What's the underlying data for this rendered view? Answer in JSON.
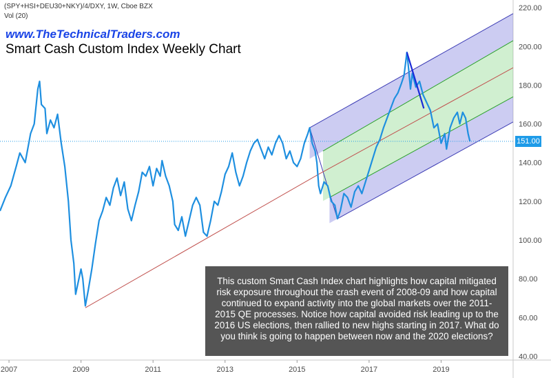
{
  "header": {
    "symbol_line": "(SPY+HSI+DEU30+NKY)/4/DXY, 1W, Cboe BZX",
    "vol_line": "Vol (20)",
    "site_url": "www.TheTechnicalTraders.com",
    "title": "Smart Cash Custom Index Weekly Chart"
  },
  "annotation": "This custom Smart Cash Index chart highlights how capital mitigated risk exposure throughout the crash event of 2008-09 and how capital continued to expand activity into the global markets over the 2011-2015 QE processes.  Notice how capital avoided risk leading up to the 2016 US elections, then rallied to new highs starting in 2017.  What do you think is going to happen between now and the 2020 elections?",
  "current_price": "151.00",
  "colors": {
    "price_line": "#1e8fe0",
    "trend_line": "#c0504d",
    "channel_outer": "#3c3cb4",
    "channel_inner": "#2aa02a",
    "median": "#c0504d",
    "badge": "#1e9be8"
  },
  "chart_data": {
    "type": "line",
    "title": "Smart Cash Custom Index Weekly Chart",
    "xlabel": "",
    "ylabel": "",
    "x_ticks": [
      "2007",
      "2009",
      "2011",
      "2013",
      "2015",
      "2017",
      "2019"
    ],
    "y_ticks": [
      40.0,
      60.0,
      80.0,
      100.0,
      120.0,
      140.0,
      160.0,
      180.0,
      200.0,
      220.0
    ],
    "xlim": [
      2006.75,
      2021.0
    ],
    "ylim": [
      38,
      224
    ],
    "series": [
      {
        "name": "(SPY+HSI+DEU30+NKY)/4/DXY",
        "points": [
          [
            2006.75,
            115
          ],
          [
            2006.9,
            122
          ],
          [
            2007.05,
            128
          ],
          [
            2007.2,
            138
          ],
          [
            2007.3,
            145
          ],
          [
            2007.45,
            140
          ],
          [
            2007.6,
            155
          ],
          [
            2007.7,
            160
          ],
          [
            2007.8,
            178
          ],
          [
            2007.85,
            182
          ],
          [
            2007.9,
            170
          ],
          [
            2008.0,
            168
          ],
          [
            2008.05,
            155
          ],
          [
            2008.15,
            162
          ],
          [
            2008.25,
            158
          ],
          [
            2008.35,
            165
          ],
          [
            2008.45,
            150
          ],
          [
            2008.55,
            138
          ],
          [
            2008.65,
            120
          ],
          [
            2008.72,
            100
          ],
          [
            2008.8,
            88
          ],
          [
            2008.85,
            72
          ],
          [
            2008.92,
            78
          ],
          [
            2009.0,
            85
          ],
          [
            2009.05,
            80
          ],
          [
            2009.12,
            66
          ],
          [
            2009.2,
            74
          ],
          [
            2009.3,
            85
          ],
          [
            2009.4,
            98
          ],
          [
            2009.5,
            110
          ],
          [
            2009.6,
            115
          ],
          [
            2009.7,
            122
          ],
          [
            2009.8,
            118
          ],
          [
            2009.9,
            127
          ],
          [
            2010.0,
            132
          ],
          [
            2010.1,
            123
          ],
          [
            2010.2,
            130
          ],
          [
            2010.3,
            116
          ],
          [
            2010.4,
            110
          ],
          [
            2010.5,
            118
          ],
          [
            2010.6,
            125
          ],
          [
            2010.7,
            135
          ],
          [
            2010.8,
            133
          ],
          [
            2010.9,
            138
          ],
          [
            2011.0,
            128
          ],
          [
            2011.1,
            137
          ],
          [
            2011.2,
            133
          ],
          [
            2011.25,
            141
          ],
          [
            2011.35,
            133
          ],
          [
            2011.45,
            128
          ],
          [
            2011.55,
            120
          ],
          [
            2011.6,
            108
          ],
          [
            2011.7,
            105
          ],
          [
            2011.8,
            112
          ],
          [
            2011.9,
            102
          ],
          [
            2012.0,
            110
          ],
          [
            2012.1,
            118
          ],
          [
            2012.2,
            122
          ],
          [
            2012.3,
            118
          ],
          [
            2012.4,
            104
          ],
          [
            2012.5,
            102
          ],
          [
            2012.6,
            110
          ],
          [
            2012.7,
            120
          ],
          [
            2012.8,
            118
          ],
          [
            2012.9,
            125
          ],
          [
            2013.0,
            134
          ],
          [
            2013.1,
            138
          ],
          [
            2013.2,
            145
          ],
          [
            2013.3,
            135
          ],
          [
            2013.4,
            128
          ],
          [
            2013.5,
            133
          ],
          [
            2013.6,
            140
          ],
          [
            2013.7,
            146
          ],
          [
            2013.8,
            150
          ],
          [
            2013.9,
            152
          ],
          [
            2014.0,
            147
          ],
          [
            2014.1,
            142
          ],
          [
            2014.2,
            148
          ],
          [
            2014.3,
            144
          ],
          [
            2014.4,
            150
          ],
          [
            2014.5,
            154
          ],
          [
            2014.6,
            150
          ],
          [
            2014.7,
            142
          ],
          [
            2014.8,
            146
          ],
          [
            2014.9,
            140
          ],
          [
            2015.0,
            138
          ],
          [
            2015.1,
            142
          ],
          [
            2015.2,
            150
          ],
          [
            2015.3,
            155
          ],
          [
            2015.35,
            158
          ],
          [
            2015.42,
            150
          ],
          [
            2015.5,
            146
          ],
          [
            2015.55,
            140
          ],
          [
            2015.6,
            128
          ],
          [
            2015.65,
            124
          ],
          [
            2015.75,
            130
          ],
          [
            2015.85,
            128
          ],
          [
            2015.95,
            120
          ],
          [
            2016.05,
            118
          ],
          [
            2016.12,
            111
          ],
          [
            2016.2,
            115
          ],
          [
            2016.3,
            124
          ],
          [
            2016.4,
            122
          ],
          [
            2016.5,
            117
          ],
          [
            2016.6,
            125
          ],
          [
            2016.7,
            128
          ],
          [
            2016.8,
            124
          ],
          [
            2016.9,
            130
          ],
          [
            2017.0,
            136
          ],
          [
            2017.1,
            142
          ],
          [
            2017.2,
            148
          ],
          [
            2017.3,
            152
          ],
          [
            2017.4,
            158
          ],
          [
            2017.5,
            163
          ],
          [
            2017.6,
            168
          ],
          [
            2017.7,
            173
          ],
          [
            2017.8,
            176
          ],
          [
            2017.9,
            181
          ],
          [
            2017.97,
            185
          ],
          [
            2018.05,
            197
          ],
          [
            2018.1,
            188
          ],
          [
            2018.15,
            178
          ],
          [
            2018.2,
            186
          ],
          [
            2018.3,
            179
          ],
          [
            2018.4,
            182
          ],
          [
            2018.5,
            175
          ],
          [
            2018.6,
            171
          ],
          [
            2018.7,
            167
          ],
          [
            2018.8,
            158
          ],
          [
            2018.9,
            160
          ],
          [
            2019.0,
            150
          ],
          [
            2019.1,
            155
          ],
          [
            2019.15,
            147
          ],
          [
            2019.25,
            158
          ],
          [
            2019.35,
            163
          ],
          [
            2019.45,
            166
          ],
          [
            2019.52,
            160
          ],
          [
            2019.6,
            166
          ],
          [
            2019.68,
            163
          ],
          [
            2019.75,
            155
          ],
          [
            2019.8,
            151
          ]
        ]
      }
    ],
    "trendlines": [
      {
        "name": "long-term-trendline",
        "from": [
          2009.12,
          65
        ],
        "to": [
          2015.6,
          134
        ]
      },
      {
        "name": "peak-decline-line",
        "from": [
          2018.05,
          197
        ],
        "to": [
          2018.52,
          168
        ]
      }
    ],
    "pitchfork": {
      "anchor_dates": [
        2015.35,
        2016.12
      ],
      "upper_line": {
        "from": [
          2015.35,
          158
        ],
        "to": [
          2021.0,
          217
        ]
      },
      "upper_inner": {
        "from": [
          2015.72,
          146
        ],
        "to": [
          2021.0,
          203
        ]
      },
      "median": {
        "from": [
          2015.6,
          134
        ],
        "to": [
          2021.0,
          189
        ]
      },
      "lower_inner": {
        "from": [
          2015.9,
          122
        ],
        "to": [
          2021.0,
          174
        ]
      },
      "lower_line": {
        "from": [
          2016.12,
          111
        ],
        "to": [
          2021.0,
          161
        ]
      }
    },
    "last_value": 151.0
  }
}
